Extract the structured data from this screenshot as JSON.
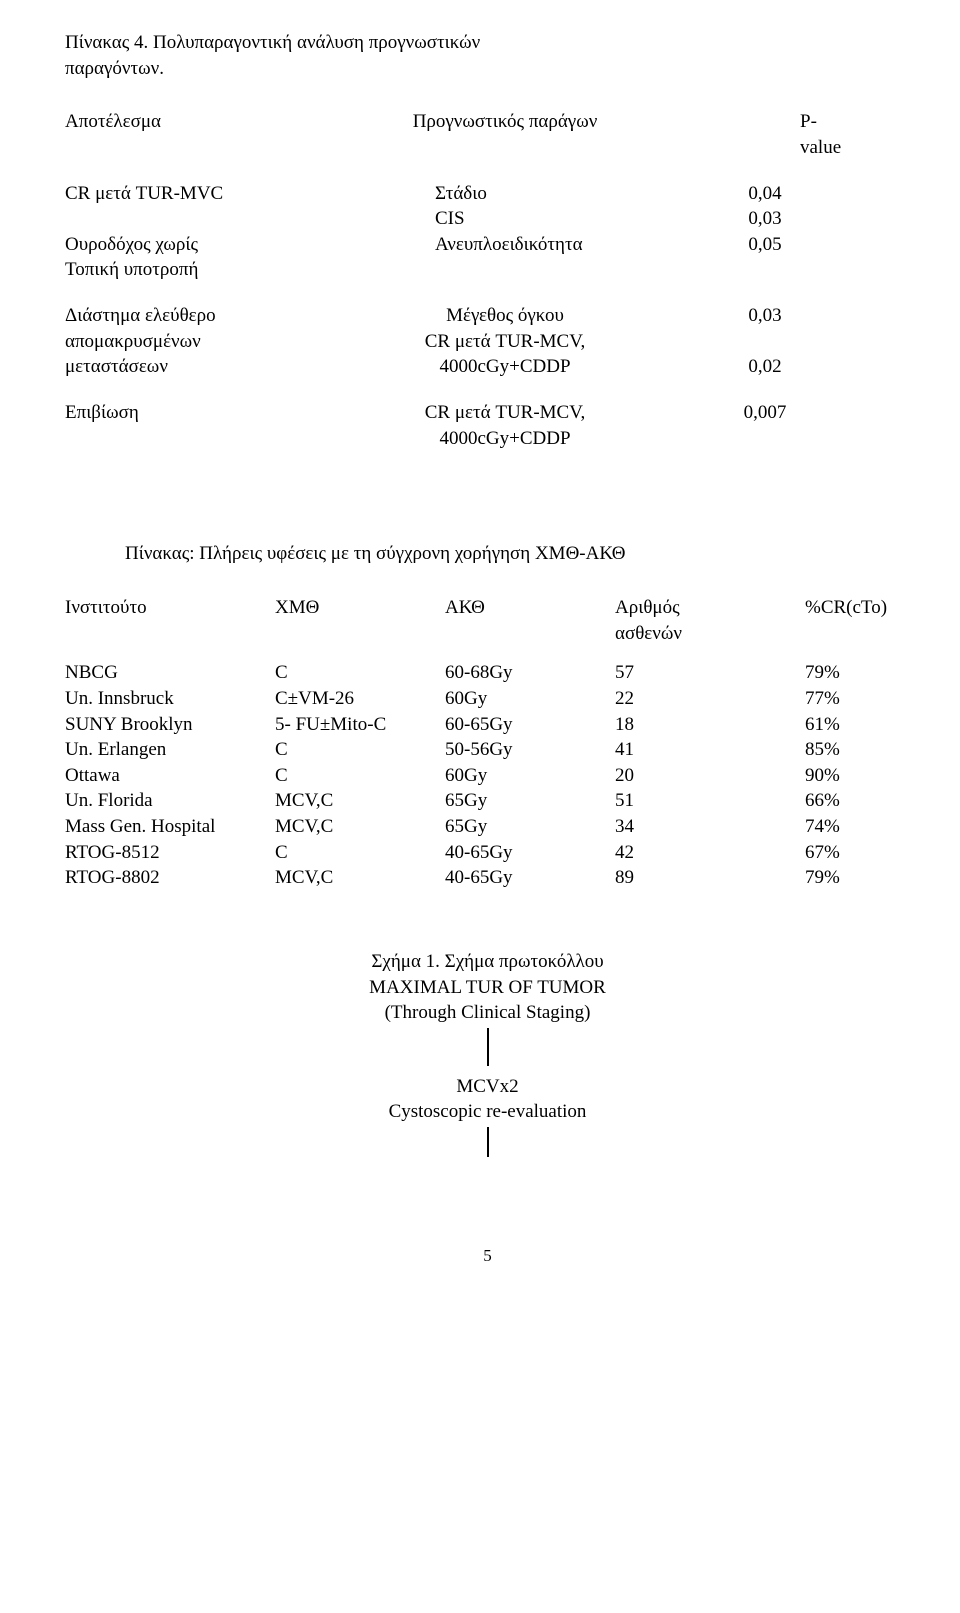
{
  "caption4": {
    "l1": "Πίνακας 4. Πολυπαραγοντική ανάλυση προγνωστικών",
    "l2": "παραγόντων."
  },
  "t1": {
    "h1": "Αποτέλεσμα",
    "h2": "Προγνωστικός παράγων",
    "h3": "P-value",
    "r1": {
      "c1": "CR μετά TUR-MVC",
      "c2a": "Στάδιο",
      "v2a": "0,04",
      "c2b": "CIS",
      "v2b": "0,03"
    },
    "r2": {
      "c1a": "Ουροδόχος χωρίς",
      "c1b": "Τοπική υποτροπή",
      "c2": "Ανευπλοειδικότητα",
      "v": "0,05"
    },
    "r3": {
      "c1a": "Διάστημα ελεύθερο",
      "c1b": "απομακρυσμένων",
      "c1c": "μεταστάσεων",
      "c2a": "Μέγεθος όγκου",
      "v2a": "0,03",
      "c2b": "CR μετά TUR-MCV,",
      "c2c": "4000cGy+CDDP",
      "v2c": "0,02"
    },
    "r4": {
      "c1": "Επιβίωση",
      "c2a": "CR μετά TUR-MCV,",
      "v2a": "0,007",
      "c2b": "4000cGy+CDDP"
    }
  },
  "caption5": "Πίνακας: Πλήρεις υφέσεις με τη σύγχρονη χορήγηση ΧΜΘ-ΑΚΘ",
  "t2": {
    "h1": "Ινστιτούτο",
    "h2": "ΧΜΘ",
    "h3": "ΑΚΘ",
    "h4a": "Αριθμός",
    "h4b": "ασθενών",
    "h5": "%CR(cTo)",
    "rows": [
      {
        "c1": "NBCG",
        "c2": "C",
        "c3": "60-68Gy",
        "c4": "57",
        "c5": "79%"
      },
      {
        "c1": "Un. Innsbruck",
        "c2": "C±VM-26",
        "c3": "60Gy",
        "c4": "22",
        "c5": "77%"
      },
      {
        "c1": "SUNY Brooklyn",
        "c2": "5- FU±Mito-C",
        "c3": "60-65Gy",
        "c4": "18",
        "c5": "61%"
      },
      {
        "c1": "Un. Erlangen",
        "c2": "C",
        "c3": "50-56Gy",
        "c4": "41",
        "c5": "85%"
      },
      {
        "c1": "Ottawa",
        "c2": "C",
        "c3": "60Gy",
        "c4": "20",
        "c5": "90%"
      },
      {
        "c1": "Un. Florida",
        "c2": "MCV,C",
        "c3": "65Gy",
        "c4": "51",
        "c5": "66%"
      },
      {
        "c1": "Mass Gen. Hospital",
        "c2": "MCV,C",
        "c3": "65Gy",
        "c4": "34",
        "c5": "74%"
      },
      {
        "c1": " RTOG-8512",
        "c2": "C",
        "c3": "40-65Gy",
        "c4": "42",
        "c5": "67%"
      },
      {
        "c1": "RTOG-8802",
        "c2": "MCV,C",
        "c3": "40-65Gy",
        "c4": "89",
        "c5": "79%"
      }
    ]
  },
  "fig": {
    "caption": "Σχήμα 1. Σχήμα    πρωτοκόλλου",
    "l1": "MAXIMAL TUR OF TUMOR",
    "l2": "(Through Clinical Staging)",
    "l3": "MCVx2",
    "l4": "Cystoscopic re-evaluation"
  },
  "pageno": "5"
}
